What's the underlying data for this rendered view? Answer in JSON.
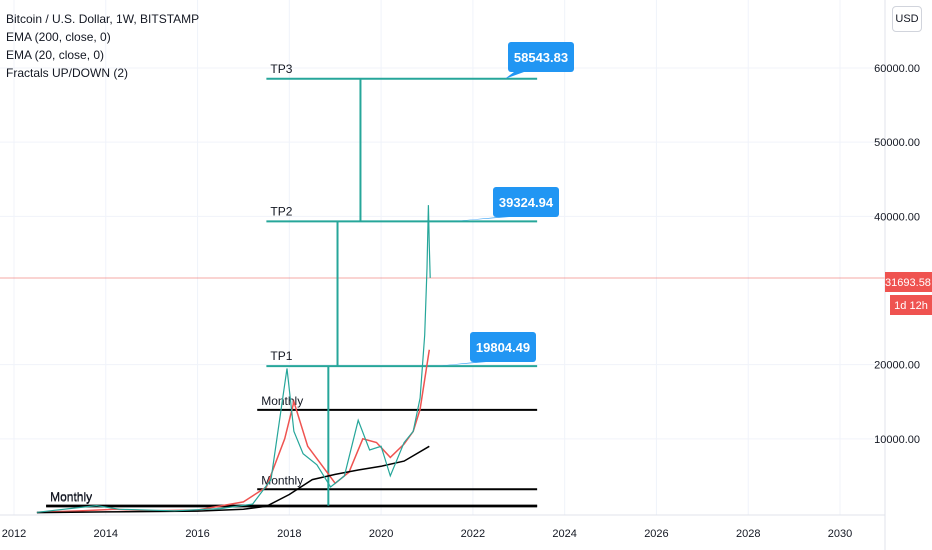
{
  "legend": {
    "title": "Bitcoin / U.S. Dollar, 1W, BITSTAMP",
    "items": [
      "EMA (200, close, 0)",
      "EMA (20, close, 0)",
      "Fractals UP/DOWN (2)"
    ]
  },
  "currency_button": "USD",
  "price_tag": {
    "value": "31693.58",
    "countdown": "1d 12h",
    "color": "#ef5350"
  },
  "colors": {
    "teal": "#26a69a",
    "callout": "#2196f3",
    "ema20": "#ef5350",
    "ema200": "#000000",
    "grid": "#f0f3fa"
  },
  "chart_data": {
    "type": "line",
    "title": "Bitcoin / U.S. Dollar, 1W, BITSTAMP",
    "xlabel": "",
    "ylabel": "",
    "xlim": [
      2012,
      2031.2
    ],
    "ylim": [
      -300,
      66000
    ],
    "x_ticks": [
      2012,
      2014,
      2016,
      2018,
      2020,
      2022,
      2024,
      2026,
      2028,
      2030
    ],
    "y_ticks": [
      {
        "value": 10000,
        "label": "10000.00"
      },
      {
        "value": 20000,
        "label": "20000.00"
      },
      {
        "value": 40000,
        "label": "40000.00"
      },
      {
        "value": 50000,
        "label": "50000.00"
      },
      {
        "value": 60000,
        "label": "60000.00"
      }
    ],
    "price_line": 31693.58,
    "series": [
      {
        "name": "EMA (20, close, 0)",
        "color": "#ef5350",
        "x": [
          2012.5,
          2013.5,
          2014.2,
          2015,
          2016,
          2017,
          2017.5,
          2017.9,
          2018.1,
          2018.4,
          2018.7,
          2019.0,
          2019.3,
          2019.6,
          2019.9,
          2020.2,
          2020.5,
          2020.7,
          2020.85,
          2020.95,
          2021.05
        ],
        "y": [
          100,
          300,
          500,
          300,
          400,
          1500,
          3500,
          10000,
          15000,
          9000,
          6500,
          4000,
          5500,
          10000,
          9500,
          7500,
          9300,
          11000,
          14000,
          18000,
          22000
        ]
      },
      {
        "name": "EMA (200, close, 0)",
        "color": "#000000",
        "x": [
          2012.5,
          2014,
          2016,
          2017,
          2017.5,
          2018,
          2018.5,
          2019,
          2019.5,
          2020,
          2020.5,
          2021.05
        ],
        "y": [
          50,
          150,
          250,
          500,
          900,
          2500,
          4500,
          5200,
          5800,
          6300,
          7000,
          9000
        ]
      },
      {
        "name": "Bitcoin / U.S. Dollar",
        "color": "#26a69a",
        "x": [
          2012.5,
          2013.8,
          2014.3,
          2015.5,
          2016.5,
          2017.2,
          2017.6,
          2017.95,
          2018.1,
          2018.3,
          2018.6,
          2018.9,
          2019.2,
          2019.5,
          2019.75,
          2020.0,
          2020.2,
          2020.5,
          2020.7,
          2020.85,
          2020.95,
          2021.0,
          2021.03,
          2021.05,
          2021.07
        ],
        "y": [
          100,
          1000,
          500,
          300,
          600,
          1200,
          4500,
          19500,
          11000,
          8000,
          6500,
          3500,
          5000,
          12500,
          8500,
          9000,
          5000,
          9500,
          11000,
          15500,
          24000,
          33000,
          41500,
          36000,
          31693.58
        ]
      }
    ],
    "targets": [
      {
        "label": "TP1",
        "value": 19804.49,
        "callout": "19804.49"
      },
      {
        "label": "TP2",
        "value": 39324.94,
        "callout": "39324.94"
      },
      {
        "label": "TP3",
        "value": 58543.83,
        "callout": "58543.83"
      }
    ],
    "levels": [
      {
        "label": "Monthly",
        "value": 13900
      },
      {
        "label": "Monthly",
        "value": 3200
      },
      {
        "label": "Monthly",
        "value": 1000
      },
      {
        "label": "Monthly",
        "value": 900
      }
    ]
  }
}
